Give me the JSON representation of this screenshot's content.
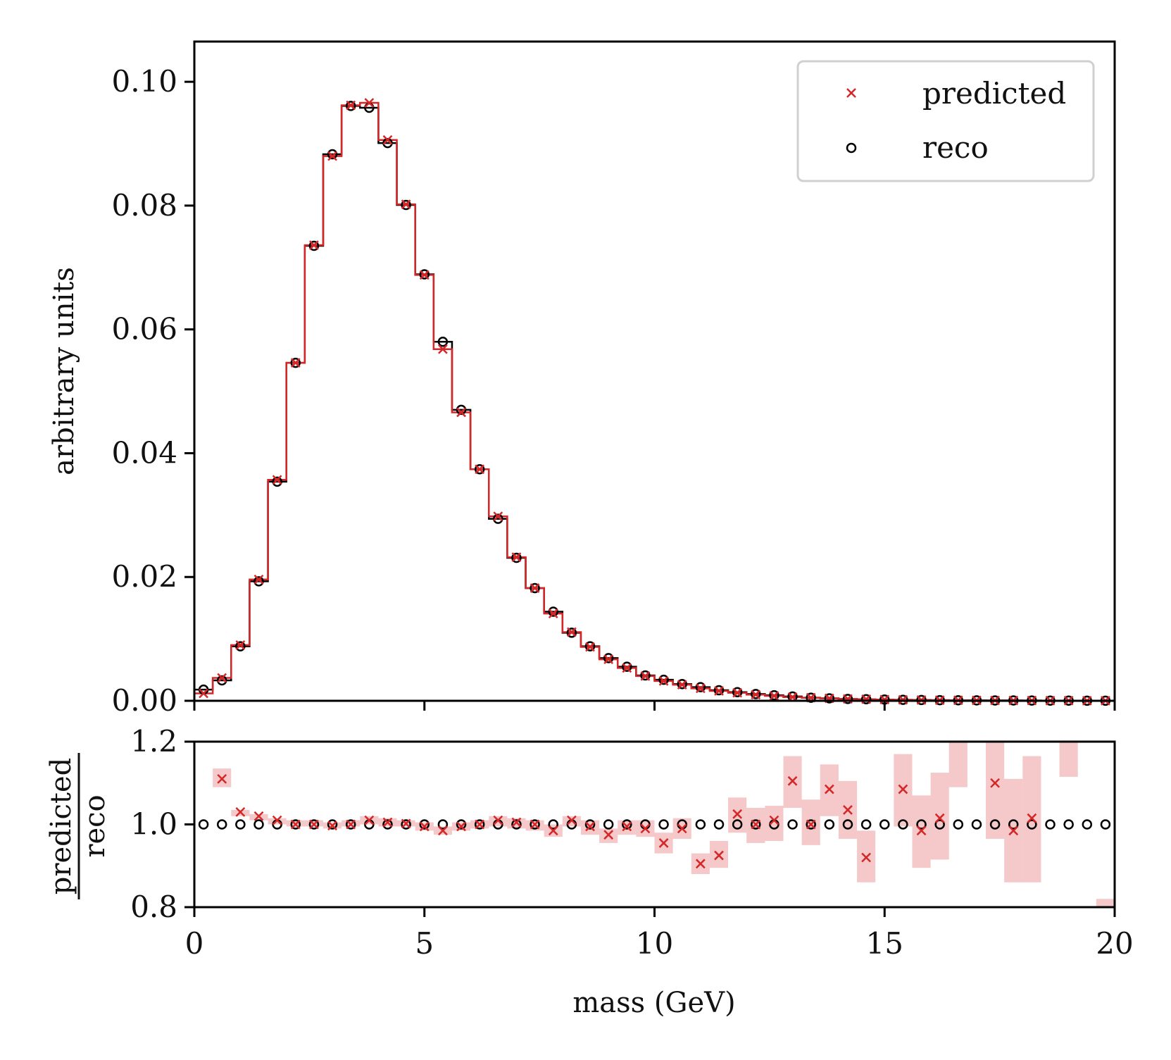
{
  "chart_data": [
    {
      "type": "step-histogram",
      "panel": "main",
      "xlabel": "mass (GeV)",
      "ylabel": "arbitrary units",
      "xlim": [
        0,
        20
      ],
      "ylim": [
        0,
        0.1065
      ],
      "xticks": [
        0,
        5,
        10,
        15,
        20
      ],
      "yticks": [
        "0.00",
        "0.02",
        "0.04",
        "0.06",
        "0.08",
        "0.10"
      ],
      "bin_width": 0.4,
      "x": [
        0.2,
        0.6,
        1.0,
        1.4,
        1.8,
        2.2,
        2.6,
        3.0,
        3.4,
        3.8,
        4.2,
        4.6,
        5.0,
        5.4,
        5.8,
        6.2,
        6.6,
        7.0,
        7.4,
        7.8,
        8.2,
        8.6,
        9.0,
        9.4,
        9.8,
        10.2,
        10.6,
        11.0,
        11.4,
        11.8,
        12.2,
        12.6,
        13.0,
        13.4,
        13.8,
        14.2,
        14.6,
        15.0,
        15.4,
        15.8,
        16.2,
        16.6,
        17.0,
        17.4,
        17.8,
        18.2,
        18.6,
        19.0,
        19.4,
        19.8
      ],
      "series": [
        {
          "name": "predicted",
          "marker": "x",
          "color": "#d62728",
          "values": [
            0.0012,
            0.0037,
            0.009,
            0.0196,
            0.0357,
            0.0546,
            0.0736,
            0.088,
            0.0962,
            0.0966,
            0.0906,
            0.0802,
            0.0688,
            0.0568,
            0.0466,
            0.0374,
            0.0298,
            0.0232,
            0.0182,
            0.0141,
            0.0111,
            0.0087,
            0.0067,
            0.0053,
            0.004,
            0.0032,
            0.0026,
            0.002,
            0.0016,
            0.0013,
            0.001,
            0.0008,
            0.0006,
            0.0005,
            0.0004,
            0.0003,
            0.00025,
            0.0002,
            0.00016,
            0.00013,
            0.0001,
            8e-05,
            7e-05,
            6e-05,
            5e-05,
            4e-05,
            3e-05,
            3e-05,
            2e-05,
            2e-05
          ]
        },
        {
          "name": "reco",
          "marker": "o",
          "color": "#000000",
          "values": [
            0.0018,
            0.0033,
            0.0088,
            0.0193,
            0.0354,
            0.0546,
            0.0735,
            0.0883,
            0.0961,
            0.0958,
            0.0901,
            0.0801,
            0.0689,
            0.058,
            0.047,
            0.0374,
            0.0294,
            0.0231,
            0.0182,
            0.0144,
            0.011,
            0.0088,
            0.0069,
            0.0055,
            0.0041,
            0.0034,
            0.0027,
            0.0022,
            0.0017,
            0.0014,
            0.0011,
            0.0009,
            0.0007,
            0.0005,
            0.0004,
            0.0003,
            0.00025,
            0.0002,
            0.00016,
            0.00013,
            0.0001,
            8e-05,
            7e-05,
            6e-05,
            5e-05,
            4e-05,
            3e-05,
            3e-05,
            2e-05,
            2e-05
          ]
        }
      ],
      "legend": {
        "entries": [
          "predicted",
          "reco"
        ],
        "location": "top-right"
      }
    },
    {
      "type": "ratio",
      "panel": "ratio",
      "xlabel": "mass (GeV)",
      "ylabel_numerator": "predicted",
      "ylabel_denominator": "reco",
      "xlim": [
        0,
        20
      ],
      "ylim": [
        0.8,
        1.2
      ],
      "xticks": [
        "0",
        "5",
        "10",
        "15",
        "20"
      ],
      "yticks": [
        "0.8",
        "1.0",
        "1.2"
      ],
      "x": [
        0.2,
        0.6,
        1.0,
        1.4,
        1.8,
        2.2,
        2.6,
        3.0,
        3.4,
        3.8,
        4.2,
        4.6,
        5.0,
        5.4,
        5.8,
        6.2,
        6.6,
        7.0,
        7.4,
        7.8,
        8.2,
        8.6,
        9.0,
        9.4,
        9.8,
        10.2,
        10.6,
        11.0,
        11.4,
        11.8,
        12.2,
        12.6,
        13.0,
        13.4,
        13.8,
        14.2,
        14.6,
        15.0,
        15.4,
        15.8,
        16.2,
        16.6,
        17.0,
        17.4,
        17.8,
        18.2,
        18.6,
        19.0,
        19.4,
        19.8
      ],
      "predicted_ratio": [
        null,
        1.11,
        1.03,
        1.02,
        1.01,
        1.0,
        1.0,
        0.997,
        1.0,
        1.01,
        1.005,
        1.002,
        0.995,
        0.985,
        0.995,
        1.0,
        1.01,
        1.005,
        1.0,
        0.985,
        1.01,
        0.995,
        0.975,
        0.995,
        0.99,
        0.955,
        0.99,
        0.905,
        0.925,
        1.025,
        1.0,
        1.01,
        1.105,
        1.0,
        1.085,
        1.035,
        0.92,
        null,
        1.085,
        0.985,
        1.015,
        null,
        null,
        1.1,
        0.985,
        1.015,
        null,
        null,
        null,
        null
      ],
      "band_low": [
        null,
        1.09,
        1.02,
        1.01,
        1.0,
        0.995,
        0.995,
        0.99,
        0.995,
        1.0,
        0.995,
        0.995,
        0.985,
        0.975,
        0.985,
        0.99,
        0.995,
        0.99,
        0.985,
        0.97,
        0.995,
        0.975,
        0.955,
        0.975,
        0.97,
        0.93,
        0.965,
        0.88,
        0.895,
        0.98,
        0.955,
        0.96,
        1.04,
        0.95,
        1.02,
        0.965,
        0.86,
        null,
        0.995,
        0.895,
        0.915,
        1.09,
        null,
        0.965,
        0.86,
        0.86,
        null,
        1.115,
        null,
        0.8
      ],
      "band_high": [
        null,
        1.135,
        1.035,
        1.025,
        1.015,
        1.01,
        1.01,
        1.005,
        1.01,
        1.02,
        1.015,
        1.01,
        1.005,
        0.995,
        1.005,
        1.01,
        1.02,
        1.015,
        1.01,
        1.0,
        1.02,
        1.01,
        0.99,
        1.01,
        1.01,
        0.98,
        1.015,
        0.93,
        0.96,
        1.065,
        1.04,
        1.045,
        1.165,
        1.06,
        1.145,
        1.105,
        0.985,
        null,
        1.17,
        1.07,
        1.125,
        1.2,
        null,
        1.2,
        1.11,
        1.165,
        null,
        1.2,
        null,
        0.82
      ],
      "reco_ratio": 1.0
    }
  ]
}
